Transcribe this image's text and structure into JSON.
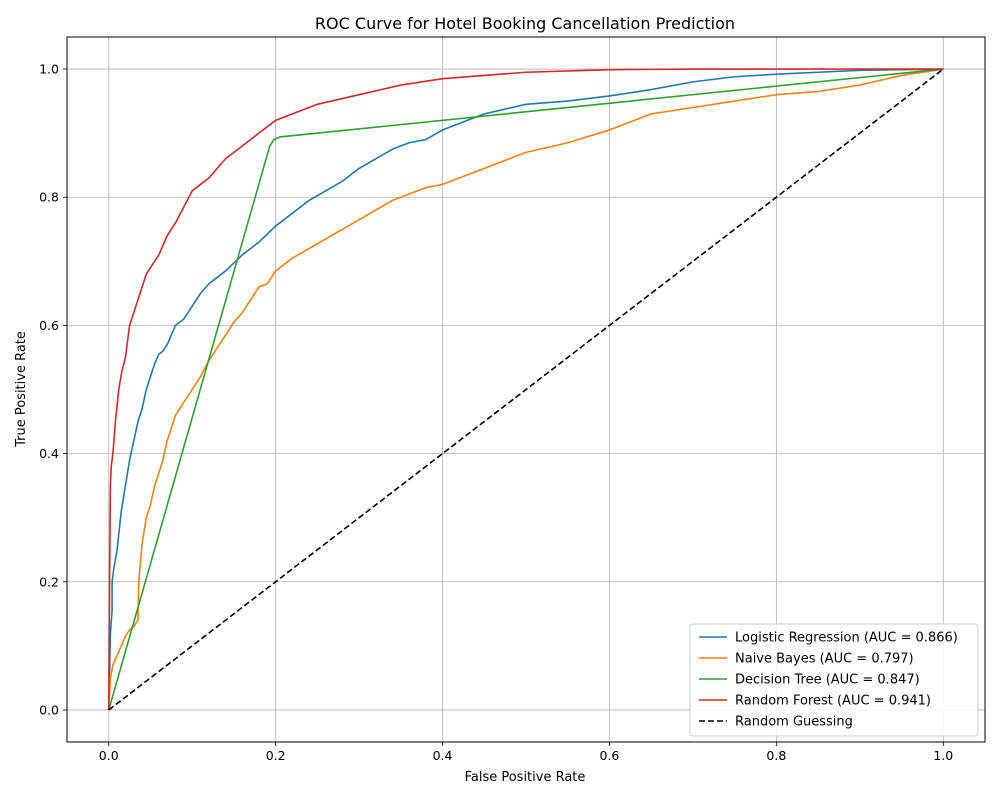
{
  "chart_data": {
    "type": "line",
    "title": "ROC Curve for Hotel Booking Cancellation Prediction",
    "xlabel": "False Positive Rate",
    "ylabel": "True Positive Rate",
    "xlim": [
      -0.05,
      1.05
    ],
    "ylim": [
      -0.05,
      1.05
    ],
    "xticks": [
      "0.0",
      "0.2",
      "0.4",
      "0.6",
      "0.8",
      "1.0"
    ],
    "yticks": [
      "0.0",
      "0.2",
      "0.4",
      "0.6",
      "0.8",
      "1.0"
    ],
    "grid": true,
    "legend_position": "lower right",
    "series": [
      {
        "name": "Logistic Regression (AUC = 0.866)",
        "color": "#1f77b4",
        "style": "solid",
        "x": [
          0,
          0.002,
          0.004,
          0.004,
          0.006,
          0.01,
          0.015,
          0.02,
          0.025,
          0.03,
          0.035,
          0.04,
          0.045,
          0.05,
          0.055,
          0.06,
          0.065,
          0.07,
          0.08,
          0.09,
          0.1,
          0.11,
          0.12,
          0.14,
          0.16,
          0.18,
          0.2,
          0.22,
          0.24,
          0.26,
          0.28,
          0.3,
          0.32,
          0.34,
          0.36,
          0.38,
          0.4,
          0.42,
          0.45,
          0.5,
          0.55,
          0.6,
          0.65,
          0.7,
          0.75,
          0.8,
          0.85,
          0.9,
          1.0
        ],
        "y": [
          0,
          0.12,
          0.155,
          0.2,
          0.22,
          0.25,
          0.31,
          0.35,
          0.39,
          0.42,
          0.45,
          0.47,
          0.5,
          0.52,
          0.54,
          0.555,
          0.56,
          0.57,
          0.6,
          0.61,
          0.63,
          0.65,
          0.665,
          0.685,
          0.71,
          0.73,
          0.755,
          0.775,
          0.795,
          0.81,
          0.825,
          0.845,
          0.86,
          0.875,
          0.885,
          0.89,
          0.905,
          0.915,
          0.93,
          0.945,
          0.95,
          0.958,
          0.968,
          0.98,
          0.988,
          0.992,
          0.995,
          0.998,
          1.0
        ]
      },
      {
        "name": "Naive Bayes (AUC = 0.797)",
        "color": "#ff7f0e",
        "style": "solid",
        "x": [
          0,
          0.002,
          0.005,
          0.01,
          0.015,
          0.02,
          0.025,
          0.03,
          0.035,
          0.036,
          0.04,
          0.045,
          0.05,
          0.055,
          0.06,
          0.065,
          0.07,
          0.075,
          0.08,
          0.09,
          0.1,
          0.11,
          0.12,
          0.13,
          0.14,
          0.15,
          0.16,
          0.17,
          0.18,
          0.19,
          0.2,
          0.22,
          0.24,
          0.26,
          0.28,
          0.3,
          0.32,
          0.34,
          0.36,
          0.38,
          0.4,
          0.42,
          0.44,
          0.46,
          0.48,
          0.5,
          0.55,
          0.6,
          0.65,
          0.7,
          0.75,
          0.8,
          0.85,
          0.9,
          0.95,
          1.0
        ],
        "y": [
          0,
          0.05,
          0.07,
          0.085,
          0.1,
          0.115,
          0.125,
          0.13,
          0.14,
          0.2,
          0.26,
          0.3,
          0.32,
          0.35,
          0.37,
          0.39,
          0.42,
          0.44,
          0.46,
          0.48,
          0.5,
          0.52,
          0.545,
          0.565,
          0.585,
          0.605,
          0.62,
          0.64,
          0.66,
          0.665,
          0.685,
          0.705,
          0.72,
          0.735,
          0.75,
          0.765,
          0.78,
          0.795,
          0.805,
          0.815,
          0.82,
          0.83,
          0.84,
          0.85,
          0.86,
          0.87,
          0.885,
          0.905,
          0.93,
          0.94,
          0.95,
          0.96,
          0.965,
          0.975,
          0.99,
          1.0
        ]
      },
      {
        "name": "Decision Tree (AUC = 0.847)",
        "color": "#2ca02c",
        "style": "solid",
        "x": [
          0,
          0.193,
          0.198,
          0.205,
          1.0
        ],
        "y": [
          0,
          0.88,
          0.89,
          0.894,
          1.0
        ]
      },
      {
        "name": "Random Forest (AUC = 0.941)",
        "color": "#d62728",
        "style": "solid",
        "x": [
          0,
          0.001,
          0.002,
          0.003,
          0.005,
          0.008,
          0.012,
          0.016,
          0.02,
          0.025,
          0.03,
          0.035,
          0.04,
          0.045,
          0.05,
          0.055,
          0.06,
          0.07,
          0.08,
          0.09,
          0.1,
          0.12,
          0.14,
          0.16,
          0.18,
          0.2,
          0.22,
          0.25,
          0.3,
          0.35,
          0.4,
          0.45,
          0.5,
          0.6,
          0.7,
          0.8,
          1.0
        ],
        "y": [
          0,
          0.2,
          0.35,
          0.38,
          0.4,
          0.45,
          0.5,
          0.53,
          0.55,
          0.6,
          0.62,
          0.64,
          0.66,
          0.68,
          0.69,
          0.7,
          0.71,
          0.74,
          0.76,
          0.785,
          0.81,
          0.83,
          0.86,
          0.88,
          0.9,
          0.92,
          0.93,
          0.945,
          0.96,
          0.975,
          0.985,
          0.99,
          0.995,
          0.999,
          1.0,
          1.0,
          1.0
        ]
      },
      {
        "name": "Random Guessing",
        "color": "#000000",
        "style": "dashed",
        "x": [
          0,
          1
        ],
        "y": [
          0,
          1
        ]
      }
    ]
  }
}
